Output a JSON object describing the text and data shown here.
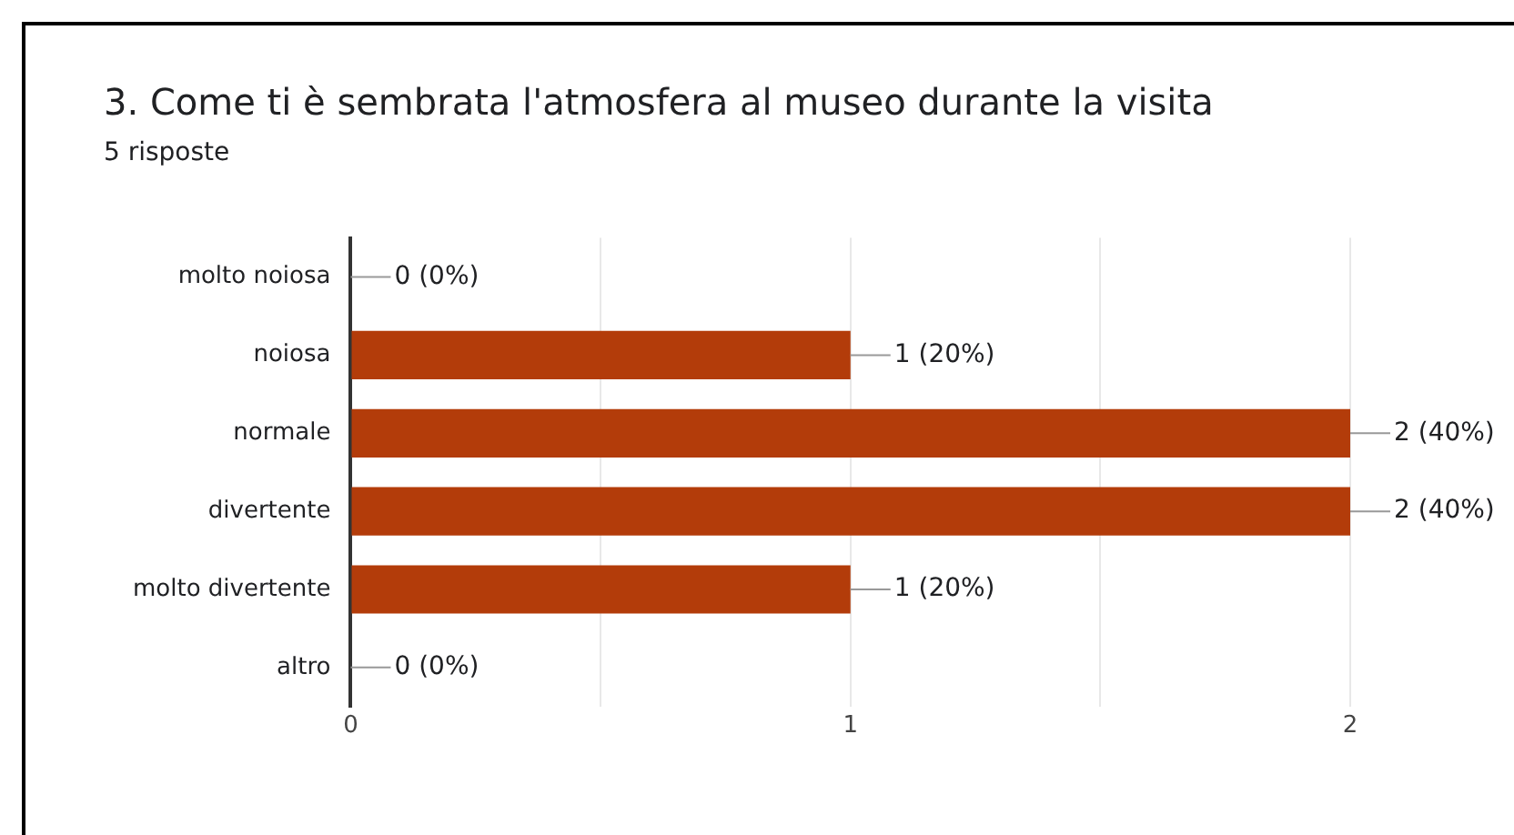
{
  "chart_data": {
    "type": "bar",
    "orientation": "horizontal",
    "title": "3. Come ti è sembrata l'atmosfera al museo durante la visita",
    "subtitle": "5 risposte",
    "categories": [
      "molto noiosa",
      "noiosa",
      "normale",
      "divertente",
      "molto divertente",
      "altro"
    ],
    "values": [
      0,
      1,
      2,
      2,
      1,
      0
    ],
    "value_labels": [
      "0 (0%)",
      "1 (20%)",
      "2 (40%)",
      "2 (40%)",
      "1 (20%)",
      "0 (0%)"
    ],
    "color": "#b33c0a",
    "xlim": [
      0,
      2
    ],
    "xticks": [
      0,
      {
        "value": 0.5,
        "label": null
      },
      1,
      {
        "value": 1.5,
        "label": null
      },
      2
    ],
    "grid": "x",
    "legend": false
  }
}
